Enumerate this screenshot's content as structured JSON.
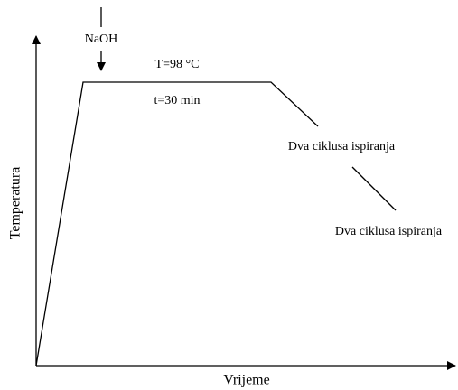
{
  "diagram": {
    "y_axis_label": "Temperatura",
    "x_axis_label": "Vrijeme",
    "reagent": "NaOH",
    "temperature": "T=98 °C",
    "duration": "t=30 min",
    "steps": [
      "Dva ciklusa ispiranja",
      "Dva ciklusa ispiranja"
    ]
  }
}
